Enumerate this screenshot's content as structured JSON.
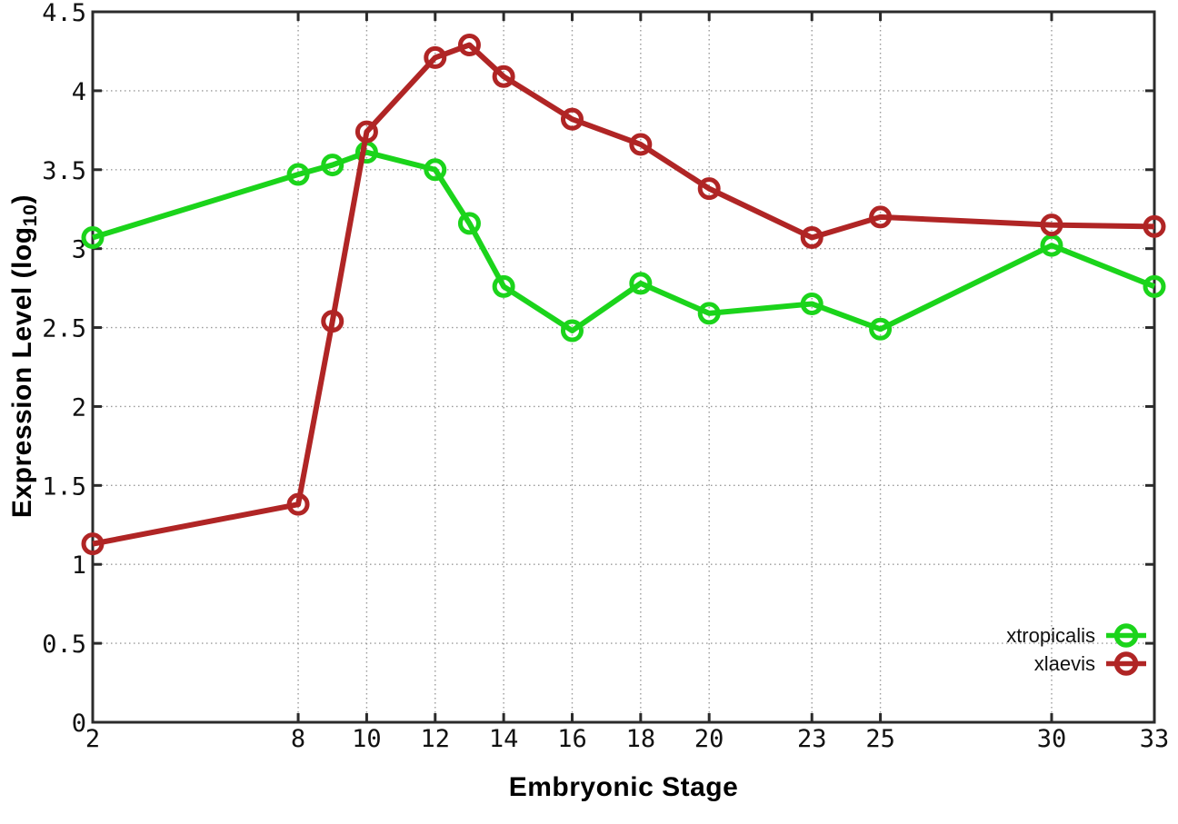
{
  "chart_data": {
    "type": "line",
    "title": "",
    "xlabel": "Embryonic Stage",
    "ylabel": "Expression Level (log10)",
    "ylabel_parts": {
      "prefix": "Expression Level (log",
      "sub": "10",
      "suffix": ")"
    },
    "x": [
      2,
      8,
      9,
      10,
      12,
      13,
      14,
      16,
      18,
      20,
      23,
      25,
      30,
      33
    ],
    "series": [
      {
        "name": "xtropicalis",
        "color": "#1bd41b",
        "marker": "open-circle",
        "values": [
          3.07,
          3.47,
          3.53,
          3.61,
          3.5,
          3.16,
          2.76,
          2.48,
          2.78,
          2.59,
          2.65,
          2.49,
          3.02,
          2.76
        ]
      },
      {
        "name": "xlaevis",
        "color": "#b02525",
        "marker": "open-circle",
        "values": [
          1.13,
          1.38,
          2.54,
          3.74,
          4.21,
          4.29,
          4.09,
          3.82,
          3.66,
          3.38,
          3.07,
          3.2,
          3.15,
          3.14
        ]
      }
    ],
    "xlim": [
      2,
      33
    ],
    "ylim": [
      0,
      4.5
    ],
    "xticks": [
      2,
      8,
      10,
      12,
      14,
      16,
      18,
      20,
      23,
      25,
      30,
      33
    ],
    "yticks": [
      0,
      0.5,
      1,
      1.5,
      2,
      2.5,
      3,
      3.5,
      4,
      4.5
    ],
    "grid": true,
    "legend_position": "bottom-right",
    "colors": {
      "grid": "#9a9a9a",
      "border": "#2b2b2b",
      "tick_text": "#111111",
      "background": "#ffffff"
    }
  }
}
